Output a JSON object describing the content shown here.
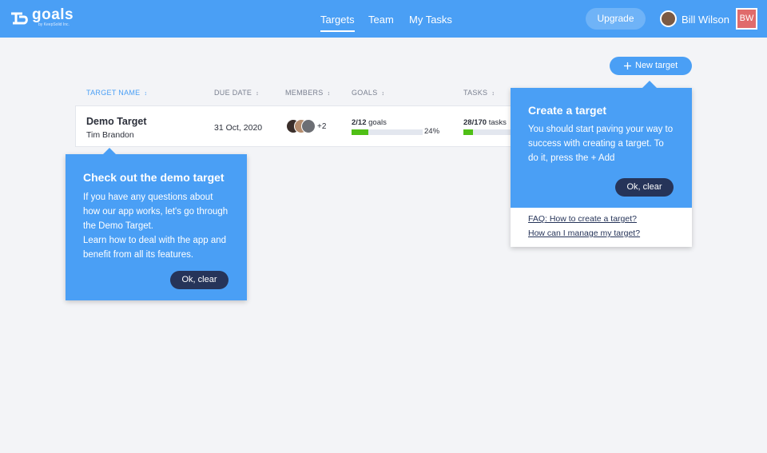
{
  "header": {
    "logo": "goals",
    "logo_sub": "by KeepSolid Inc.",
    "nav": [
      "Targets",
      "Team",
      "My Tasks"
    ],
    "upgrade": "Upgrade",
    "user_name": "Bill Wilson",
    "user_initials": "BW"
  },
  "toolbar": {
    "new_target": "New target"
  },
  "table": {
    "columns": [
      "TARGET NAME",
      "DUE DATE",
      "MEMBERS",
      "GOALS",
      "TASKS"
    ],
    "rows": [
      {
        "name": "Demo Target",
        "owner": "Tim Brandon",
        "due": "31 Oct, 2020",
        "members_extra": "+2",
        "goals_count": "2/12",
        "goals_unit": "goals",
        "goals_percent": {
          "value": 24,
          "label": "24%"
        },
        "tasks_count": "28/170",
        "tasks_unit": "tasks"
      }
    ]
  },
  "popups": [
    {
      "title": "Check out the demo target",
      "lines": [
        "If you have any questions about how our app works, let's go through the Demo Target.",
        "Learn how to deal with the app and benefit from all its features."
      ],
      "button": "Ok, clear"
    },
    {
      "title": "Create a target",
      "lines": [
        "You should start paving your way to success with creating a target. To do it, press the + Add"
      ],
      "button": "Ok, clear",
      "links": [
        "FAQ: How to create a target?",
        "How can I manage my target?"
      ]
    }
  ]
}
